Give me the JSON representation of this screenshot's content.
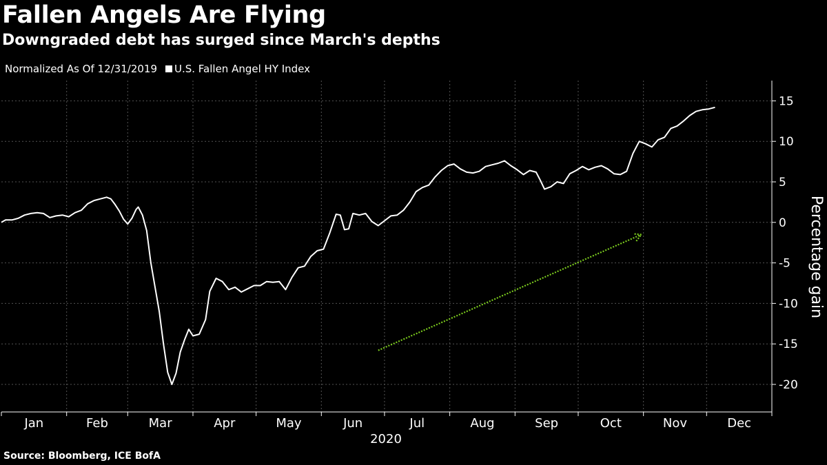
{
  "chart_data": {
    "type": "line",
    "title": "Fallen Angels Are Flying",
    "subtitle": "Downgraded debt has surged since March's depths",
    "legend_note": "Normalized As Of 12/31/2019",
    "ylabel": "Percentage gain",
    "xlabel": "2020",
    "source": "Source: Bloomberg, ICE BofA",
    "ylim": [
      -23.4,
      17.5
    ],
    "yticks": [
      15,
      10,
      5,
      0,
      -5,
      -10,
      -15,
      -20
    ],
    "ytick_labels": [
      "15",
      "10",
      "5",
      "0",
      "-5",
      "-10",
      "-15",
      "-20"
    ],
    "months": [
      "Jan",
      "Feb",
      "Mar",
      "Apr",
      "May",
      "Jun",
      "Jul",
      "Aug",
      "Sep",
      "Oct",
      "Nov",
      "Dec"
    ],
    "grid": true,
    "legend_position": "top-left",
    "colors": {
      "background": "#000000",
      "line": "#ffffff",
      "grid": "#555555",
      "arrow": "#7ccc1e"
    },
    "annotation": {
      "type": "arrow",
      "from": [
        "2020-06-28",
        -15.8
      ],
      "to": [
        "2020-10-31",
        -1.5
      ]
    },
    "series": [
      {
        "name": "U.S. Fallen Angel HY Index",
        "points": [
          [
            "2020-01-01",
            0.0
          ],
          [
            "2020-01-03",
            0.3
          ],
          [
            "2020-01-06",
            0.3
          ],
          [
            "2020-01-09",
            0.5
          ],
          [
            "2020-01-12",
            0.9
          ],
          [
            "2020-01-15",
            1.1
          ],
          [
            "2020-01-18",
            1.2
          ],
          [
            "2020-01-21",
            1.1
          ],
          [
            "2020-01-24",
            0.6
          ],
          [
            "2020-01-27",
            0.8
          ],
          [
            "2020-01-30",
            0.9
          ],
          [
            "2020-02-02",
            0.7
          ],
          [
            "2020-02-05",
            1.2
          ],
          [
            "2020-02-08",
            1.5
          ],
          [
            "2020-02-11",
            2.3
          ],
          [
            "2020-02-14",
            2.7
          ],
          [
            "2020-02-17",
            2.9
          ],
          [
            "2020-02-20",
            3.1
          ],
          [
            "2020-02-22",
            2.9
          ],
          [
            "2020-02-24",
            2.2
          ],
          [
            "2020-02-26",
            1.4
          ],
          [
            "2020-02-28",
            0.4
          ],
          [
            "2020-03-01",
            -0.2
          ],
          [
            "2020-03-03",
            0.5
          ],
          [
            "2020-03-05",
            1.6
          ],
          [
            "2020-03-06",
            1.9
          ],
          [
            "2020-03-08",
            0.9
          ],
          [
            "2020-03-10",
            -1.0
          ],
          [
            "2020-03-12",
            -5.0
          ],
          [
            "2020-03-14",
            -8.0
          ],
          [
            "2020-03-16",
            -11.0
          ],
          [
            "2020-03-18",
            -15.0
          ],
          [
            "2020-03-20",
            -18.5
          ],
          [
            "2020-03-22",
            -20.0
          ],
          [
            "2020-03-24",
            -18.6
          ],
          [
            "2020-03-26",
            -16.0
          ],
          [
            "2020-03-28",
            -14.5
          ],
          [
            "2020-03-30",
            -13.2
          ],
          [
            "2020-04-01",
            -14.0
          ],
          [
            "2020-04-04",
            -13.8
          ],
          [
            "2020-04-07",
            -12.0
          ],
          [
            "2020-04-09",
            -8.5
          ],
          [
            "2020-04-12",
            -6.9
          ],
          [
            "2020-04-15",
            -7.3
          ],
          [
            "2020-04-18",
            -8.3
          ],
          [
            "2020-04-21",
            -8.0
          ],
          [
            "2020-04-24",
            -8.6
          ],
          [
            "2020-04-27",
            -8.2
          ],
          [
            "2020-04-30",
            -7.8
          ],
          [
            "2020-05-03",
            -7.8
          ],
          [
            "2020-05-06",
            -7.3
          ],
          [
            "2020-05-09",
            -7.4
          ],
          [
            "2020-05-12",
            -7.3
          ],
          [
            "2020-05-15",
            -8.3
          ],
          [
            "2020-05-18",
            -6.8
          ],
          [
            "2020-05-21",
            -5.6
          ],
          [
            "2020-05-24",
            -5.4
          ],
          [
            "2020-05-27",
            -4.2
          ],
          [
            "2020-05-30",
            -3.5
          ],
          [
            "2020-06-02",
            -3.3
          ],
          [
            "2020-06-05",
            -1.3
          ],
          [
            "2020-06-08",
            1.0
          ],
          [
            "2020-06-10",
            0.9
          ],
          [
            "2020-06-12",
            -0.9
          ],
          [
            "2020-06-14",
            -0.8
          ],
          [
            "2020-06-16",
            1.1
          ],
          [
            "2020-06-19",
            0.9
          ],
          [
            "2020-06-22",
            1.1
          ],
          [
            "2020-06-25",
            0.1
          ],
          [
            "2020-06-28",
            -0.4
          ],
          [
            "2020-07-01",
            0.2
          ],
          [
            "2020-07-04",
            0.8
          ],
          [
            "2020-07-07",
            0.9
          ],
          [
            "2020-07-10",
            1.5
          ],
          [
            "2020-07-13",
            2.5
          ],
          [
            "2020-07-16",
            3.8
          ],
          [
            "2020-07-19",
            4.3
          ],
          [
            "2020-07-22",
            4.6
          ],
          [
            "2020-07-25",
            5.6
          ],
          [
            "2020-07-28",
            6.4
          ],
          [
            "2020-07-31",
            7.0
          ],
          [
            "2020-08-03",
            7.2
          ],
          [
            "2020-08-06",
            6.6
          ],
          [
            "2020-08-09",
            6.2
          ],
          [
            "2020-08-12",
            6.1
          ],
          [
            "2020-08-15",
            6.3
          ],
          [
            "2020-08-18",
            6.9
          ],
          [
            "2020-08-21",
            7.1
          ],
          [
            "2020-08-24",
            7.3
          ],
          [
            "2020-08-27",
            7.6
          ],
          [
            "2020-08-30",
            7.0
          ],
          [
            "2020-09-02",
            6.5
          ],
          [
            "2020-09-05",
            5.9
          ],
          [
            "2020-09-08",
            6.4
          ],
          [
            "2020-09-11",
            6.2
          ],
          [
            "2020-09-13",
            5.2
          ],
          [
            "2020-09-15",
            4.1
          ],
          [
            "2020-09-18",
            4.4
          ],
          [
            "2020-09-21",
            5.0
          ],
          [
            "2020-09-24",
            4.8
          ],
          [
            "2020-09-27",
            6.0
          ],
          [
            "2020-09-30",
            6.4
          ],
          [
            "2020-10-03",
            6.9
          ],
          [
            "2020-10-06",
            6.5
          ],
          [
            "2020-10-09",
            6.8
          ],
          [
            "2020-10-12",
            7.0
          ],
          [
            "2020-10-15",
            6.6
          ],
          [
            "2020-10-18",
            6.0
          ],
          [
            "2020-10-21",
            5.9
          ],
          [
            "2020-10-24",
            6.3
          ],
          [
            "2020-10-27",
            8.5
          ],
          [
            "2020-10-30",
            10.0
          ],
          [
            "2020-11-02",
            9.7
          ],
          [
            "2020-11-05",
            9.3
          ],
          [
            "2020-11-08",
            10.2
          ],
          [
            "2020-11-11",
            10.5
          ],
          [
            "2020-11-14",
            11.6
          ],
          [
            "2020-11-17",
            11.9
          ],
          [
            "2020-11-20",
            12.5
          ],
          [
            "2020-11-23",
            13.2
          ],
          [
            "2020-11-26",
            13.7
          ],
          [
            "2020-11-29",
            13.9
          ],
          [
            "2020-12-02",
            14.0
          ],
          [
            "2020-12-05",
            14.2
          ]
        ]
      }
    ]
  }
}
